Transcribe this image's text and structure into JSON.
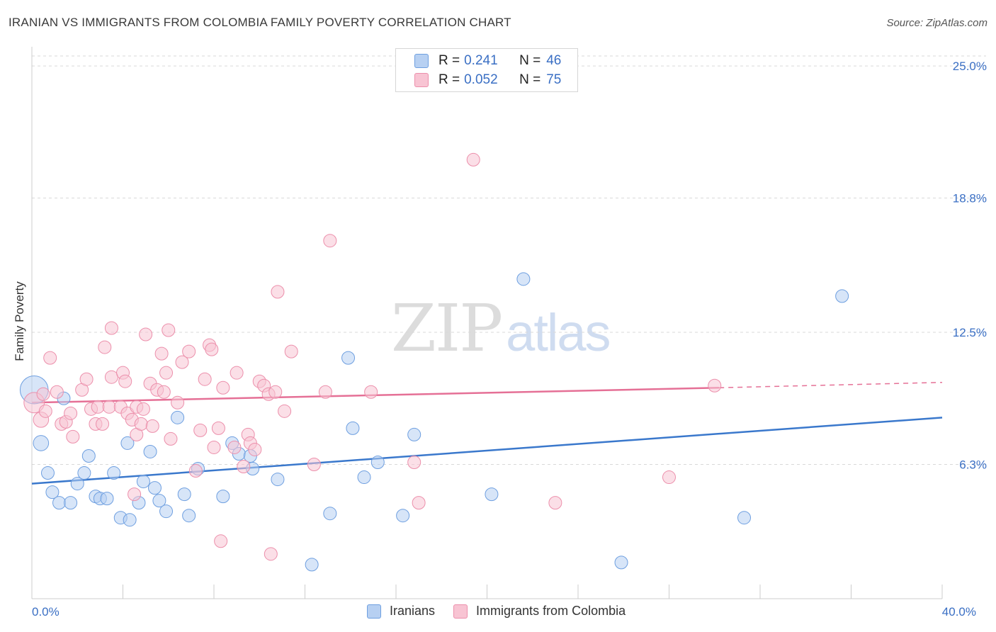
{
  "colors": {
    "blue_fill": "#b7d0f2",
    "blue_stroke": "#6e9fe0",
    "blue_line": "#3a78cc",
    "pink_fill": "#f8c4d3",
    "pink_stroke": "#ec8fab",
    "pink_line": "#e57096",
    "tick_label": "#3a6fc4",
    "grid": "#d9d9d9"
  },
  "legend": {
    "rows": [
      {
        "r_label": "R =",
        "r_value": "0.241",
        "n_label": "N =",
        "n_value": "46"
      },
      {
        "r_label": "R =",
        "r_value": "0.052",
        "n_label": "N =",
        "n_value": "75"
      }
    ]
  },
  "chart_data": {
    "type": "scatter",
    "title": "IRANIAN VS IMMIGRANTS FROM COLOMBIA FAMILY POVERTY CORRELATION CHART",
    "source": "Source: ZipAtlas.com",
    "xlabel": "",
    "ylabel": "Family Poverty",
    "xlim": [
      0,
      40
    ],
    "ylim": [
      0,
      25.9
    ],
    "x_tick_labels": [
      {
        "value": 0,
        "label": "0.0%"
      },
      {
        "value": 40,
        "label": "40.0%"
      }
    ],
    "y_tick_labels": [
      {
        "value": 6.3,
        "label": "6.3%"
      },
      {
        "value": 12.5,
        "label": "12.5%"
      },
      {
        "value": 18.8,
        "label": "18.8%"
      },
      {
        "value": 25.0,
        "label": "25.0%"
      }
    ],
    "watermark": {
      "left": "ZIP",
      "right": "atlas"
    },
    "series": [
      {
        "name": "Iranians",
        "color": "blue",
        "trend": {
          "x0": 0,
          "y0": 5.4,
          "x1": 40,
          "y1": 8.5
        },
        "points": [
          [
            0.1,
            9.8,
            2.2
          ],
          [
            0.4,
            7.3,
            1.2
          ],
          [
            0.7,
            5.9,
            1
          ],
          [
            0.9,
            5.0,
            1
          ],
          [
            1.2,
            4.5,
            1
          ],
          [
            1.4,
            9.4,
            1
          ],
          [
            1.7,
            4.5,
            1
          ],
          [
            2.0,
            5.4,
            1
          ],
          [
            2.3,
            5.9,
            1
          ],
          [
            2.5,
            6.7,
            1
          ],
          [
            2.8,
            4.8,
            1
          ],
          [
            3.0,
            4.7,
            1
          ],
          [
            3.3,
            4.7,
            1
          ],
          [
            3.6,
            5.9,
            1
          ],
          [
            3.9,
            3.8,
            1
          ],
          [
            4.2,
            7.3,
            1
          ],
          [
            4.3,
            3.7,
            1
          ],
          [
            4.7,
            4.5,
            1
          ],
          [
            4.9,
            5.5,
            1
          ],
          [
            5.2,
            6.9,
            1
          ],
          [
            5.4,
            5.2,
            1
          ],
          [
            5.6,
            4.6,
            1
          ],
          [
            5.9,
            4.1,
            1
          ],
          [
            6.4,
            8.5,
            1
          ],
          [
            6.7,
            4.9,
            1
          ],
          [
            6.9,
            3.9,
            1
          ],
          [
            7.3,
            6.1,
            1
          ],
          [
            8.4,
            4.8,
            1
          ],
          [
            8.8,
            7.3,
            1
          ],
          [
            9.1,
            6.8,
            1
          ],
          [
            9.6,
            6.7,
            1
          ],
          [
            9.7,
            6.1,
            1
          ],
          [
            10.8,
            5.6,
            1
          ],
          [
            12.3,
            1.6,
            1
          ],
          [
            13.1,
            4.0,
            1
          ],
          [
            13.9,
            11.3,
            1
          ],
          [
            14.1,
            8.0,
            1
          ],
          [
            14.6,
            5.7,
            1
          ],
          [
            15.2,
            6.4,
            1
          ],
          [
            16.3,
            3.9,
            1
          ],
          [
            16.8,
            7.7,
            1
          ],
          [
            20.2,
            4.9,
            1
          ],
          [
            21.6,
            15.0,
            1
          ],
          [
            25.9,
            1.7,
            1
          ],
          [
            31.3,
            3.8,
            1
          ],
          [
            35.6,
            14.2,
            1
          ]
        ]
      },
      {
        "name": "Immigrants from Colombia",
        "color": "pink",
        "trend": {
          "x0": 0,
          "y0": 9.2,
          "x1": 30.2,
          "y1": 9.9,
          "dash_to_x": 40,
          "dash_to_y": 10.15
        },
        "points": [
          [
            0.1,
            9.2,
            1.6
          ],
          [
            0.4,
            8.4,
            1.2
          ],
          [
            0.6,
            8.8,
            1
          ],
          [
            0.8,
            11.3,
            1
          ],
          [
            1.1,
            9.7,
            1
          ],
          [
            1.3,
            8.2,
            1
          ],
          [
            1.5,
            8.3,
            1
          ],
          [
            1.7,
            8.7,
            1
          ],
          [
            1.8,
            7.6,
            1
          ],
          [
            2.2,
            9.8,
            1
          ],
          [
            2.4,
            10.3,
            1
          ],
          [
            2.6,
            8.9,
            1
          ],
          [
            2.8,
            8.2,
            1
          ],
          [
            2.9,
            9.0,
            1
          ],
          [
            3.1,
            8.2,
            1
          ],
          [
            3.2,
            11.8,
            1
          ],
          [
            3.4,
            9.0,
            1
          ],
          [
            3.5,
            10.4,
            1
          ],
          [
            3.5,
            12.7,
            1
          ],
          [
            3.9,
            9.0,
            1
          ],
          [
            4.0,
            10.6,
            1
          ],
          [
            4.1,
            10.2,
            1
          ],
          [
            4.2,
            8.7,
            1
          ],
          [
            4.4,
            8.4,
            1
          ],
          [
            4.5,
            4.9,
            1
          ],
          [
            4.6,
            9.0,
            1
          ],
          [
            4.6,
            7.7,
            1
          ],
          [
            4.8,
            8.2,
            1
          ],
          [
            4.9,
            8.9,
            1
          ],
          [
            5.0,
            12.4,
            1
          ],
          [
            5.2,
            10.1,
            1
          ],
          [
            5.3,
            8.1,
            1
          ],
          [
            5.5,
            9.8,
            1
          ],
          [
            5.7,
            11.5,
            1
          ],
          [
            5.8,
            9.7,
            1
          ],
          [
            5.9,
            10.6,
            1
          ],
          [
            6.0,
            12.6,
            1
          ],
          [
            6.1,
            7.5,
            1
          ],
          [
            6.4,
            9.2,
            1
          ],
          [
            6.6,
            11.1,
            1
          ],
          [
            6.9,
            11.6,
            1
          ],
          [
            7.2,
            6.0,
            1
          ],
          [
            7.4,
            7.9,
            1
          ],
          [
            7.6,
            10.3,
            1
          ],
          [
            7.8,
            11.9,
            1
          ],
          [
            7.9,
            11.7,
            1
          ],
          [
            8.0,
            7.1,
            1
          ],
          [
            8.2,
            8.0,
            1
          ],
          [
            8.3,
            2.7,
            1
          ],
          [
            8.4,
            9.9,
            1
          ],
          [
            8.9,
            7.1,
            1
          ],
          [
            9.0,
            10.6,
            1
          ],
          [
            9.3,
            6.2,
            1
          ],
          [
            9.5,
            7.7,
            1
          ],
          [
            9.6,
            7.3,
            1
          ],
          [
            9.8,
            7.0,
            1
          ],
          [
            10.0,
            10.2,
            1
          ],
          [
            10.2,
            10.0,
            1
          ],
          [
            10.4,
            9.6,
            1
          ],
          [
            10.5,
            2.1,
            1
          ],
          [
            10.7,
            9.7,
            1
          ],
          [
            10.8,
            14.4,
            1
          ],
          [
            11.1,
            8.8,
            1
          ],
          [
            11.4,
            11.6,
            1
          ],
          [
            12.4,
            6.3,
            1
          ],
          [
            12.9,
            9.7,
            1
          ],
          [
            13.1,
            16.8,
            1
          ],
          [
            14.9,
            9.7,
            1
          ],
          [
            16.8,
            6.4,
            1
          ],
          [
            17.0,
            4.5,
            1
          ],
          [
            19.4,
            20.6,
            1
          ],
          [
            28.0,
            5.7,
            1
          ],
          [
            30.0,
            10.0,
            1
          ],
          [
            23.0,
            4.5,
            1
          ],
          [
            0.5,
            9.6,
            1
          ]
        ]
      }
    ]
  }
}
